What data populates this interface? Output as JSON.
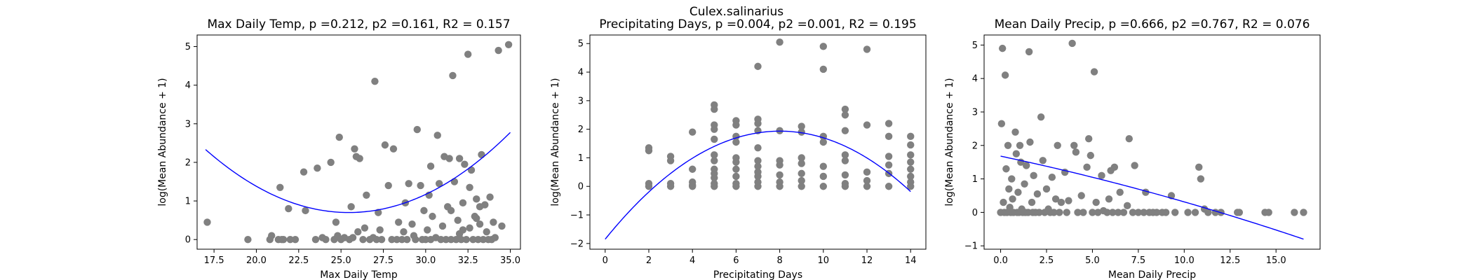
{
  "suptitle": "Culex.salinarius",
  "chart_data": [
    {
      "type": "scatter",
      "title": "Max Daily Temp, p =0.212, p2 =0.161, R2 = 0.157",
      "xlabel": "Max Daily Temp",
      "ylabel": "log(Mean Abundance + 1)",
      "xlim": [
        16.5,
        35.6
      ],
      "ylim": [
        -0.25,
        5.3
      ],
      "xticks": [
        "17.5",
        "20.0",
        "22.5",
        "25.0",
        "27.5",
        "30.0",
        "32.5",
        "35.0"
      ],
      "yticks": [
        "0",
        "1",
        "2",
        "3",
        "4",
        "5"
      ],
      "grid": false,
      "point_color": "#808080",
      "curve_color": "#0000ff",
      "fit_quadratic": [
        0.0228,
        -1.161,
        15.48
      ],
      "fit_range": [
        17.0,
        35.0
      ],
      "points": [
        [
          17.1,
          0.45
        ],
        [
          19.5,
          0.0
        ],
        [
          20.8,
          0.0
        ],
        [
          20.9,
          0.1
        ],
        [
          21.3,
          0.0
        ],
        [
          21.5,
          0.0
        ],
        [
          21.6,
          0.0
        ],
        [
          22.0,
          0.0
        ],
        [
          22.3,
          0.0
        ],
        [
          21.4,
          1.35
        ],
        [
          21.9,
          0.8
        ],
        [
          22.8,
          1.75
        ],
        [
          22.9,
          0.75
        ],
        [
          23.5,
          0.0
        ],
        [
          23.9,
          0.05
        ],
        [
          23.6,
          1.85
        ],
        [
          24.4,
          2.0
        ],
        [
          24.1,
          0.0
        ],
        [
          24.6,
          0.0
        ],
        [
          24.8,
          0.1
        ],
        [
          24.7,
          0.45
        ],
        [
          25.0,
          0.0
        ],
        [
          25.2,
          0.05
        ],
        [
          24.9,
          2.65
        ],
        [
          25.6,
          0.85
        ],
        [
          25.8,
          2.35
        ],
        [
          25.9,
          2.15
        ],
        [
          26.1,
          2.1
        ],
        [
          25.5,
          0.0
        ],
        [
          25.7,
          0.05
        ],
        [
          26.0,
          0.2
        ],
        [
          26.3,
          0.0
        ],
        [
          26.5,
          1.15
        ],
        [
          26.7,
          0.0
        ],
        [
          26.9,
          0.05
        ],
        [
          27.0,
          4.1
        ],
        [
          27.1,
          0.0
        ],
        [
          27.2,
          0.7
        ],
        [
          27.4,
          0.0
        ],
        [
          27.6,
          2.45
        ],
        [
          27.8,
          1.4
        ],
        [
          28.0,
          0.0
        ],
        [
          28.1,
          2.35
        ],
        [
          28.3,
          0.0
        ],
        [
          28.4,
          0.45
        ],
        [
          28.6,
          0.0
        ],
        [
          28.7,
          0.2
        ],
        [
          28.9,
          0.0
        ],
        [
          29.0,
          1.45
        ],
        [
          29.3,
          0.1
        ],
        [
          29.4,
          0.0
        ],
        [
          29.5,
          2.85
        ],
        [
          29.7,
          1.4
        ],
        [
          29.8,
          0.0
        ],
        [
          29.9,
          0.75
        ],
        [
          30.0,
          0.0
        ],
        [
          30.1,
          0.25
        ],
        [
          30.2,
          1.15
        ],
        [
          30.3,
          0.0
        ],
        [
          30.4,
          0.6
        ],
        [
          30.6,
          0.05
        ],
        [
          30.7,
          2.7
        ],
        [
          30.8,
          1.45
        ],
        [
          30.9,
          0.0
        ],
        [
          31.0,
          0.35
        ],
        [
          31.1,
          2.15
        ],
        [
          31.2,
          0.0
        ],
        [
          31.3,
          0.85
        ],
        [
          31.4,
          2.1
        ],
        [
          31.5,
          0.0
        ],
        [
          31.6,
          4.25
        ],
        [
          31.7,
          1.5
        ],
        [
          31.8,
          0.0
        ],
        [
          31.9,
          0.5
        ],
        [
          32.0,
          2.1
        ],
        [
          32.1,
          0.0
        ],
        [
          32.2,
          0.95
        ],
        [
          32.3,
          1.95
        ],
        [
          32.4,
          0.0
        ],
        [
          32.5,
          4.8
        ],
        [
          32.6,
          0.3
        ],
        [
          32.7,
          1.8
        ],
        [
          32.8,
          0.0
        ],
        [
          32.9,
          0.6
        ],
        [
          33.0,
          1.05
        ],
        [
          33.1,
          0.0
        ],
        [
          33.2,
          0.4
        ],
        [
          33.3,
          2.2
        ],
        [
          33.4,
          0.0
        ],
        [
          33.5,
          0.9
        ],
        [
          33.6,
          0.2
        ],
        [
          33.7,
          0.0
        ],
        [
          33.8,
          1.1
        ],
        [
          33.9,
          0.0
        ],
        [
          34.0,
          0.45
        ],
        [
          34.1,
          0.05
        ],
        [
          34.3,
          4.9
        ],
        [
          34.5,
          0.35
        ],
        [
          34.9,
          5.05
        ],
        [
          31.5,
          0.75
        ],
        [
          32.0,
          0.15
        ],
        [
          32.6,
          1.35
        ],
        [
          33.2,
          0.85
        ],
        [
          30.3,
          1.9
        ],
        [
          29.2,
          0.4
        ],
        [
          28.8,
          0.95
        ],
        [
          27.3,
          0.25
        ],
        [
          26.4,
          0.3
        ],
        [
          33.0,
          0.55
        ],
        [
          32.2,
          0.25
        ]
      ]
    },
    {
      "type": "scatter",
      "title": "Precipitating Days, p =0.004, p2 =0.001, R2 = 0.195",
      "xlabel": "Precipitating Days",
      "ylabel": "log(Mean Abundance + 1)",
      "xlim": [
        -0.7,
        14.7
      ],
      "ylim": [
        -2.2,
        5.3
      ],
      "xticks": [
        "0",
        "2",
        "4",
        "6",
        "8",
        "10",
        "12",
        "14"
      ],
      "yticks": [
        "−2",
        "−1",
        "0",
        "1",
        "2",
        "3",
        "4",
        "5"
      ],
      "grid": false,
      "point_color": "#808080",
      "curve_color": "#0000ff",
      "fit_quadratic": [
        -0.059,
        0.945,
        -1.85
      ],
      "fit_range": [
        0,
        14
      ],
      "points": [
        [
          2,
          1.35
        ],
        [
          2,
          1.25
        ],
        [
          2,
          0.1
        ],
        [
          2,
          0.0
        ],
        [
          3,
          1.05
        ],
        [
          3,
          0.9
        ],
        [
          3,
          0.1
        ],
        [
          3,
          0.0
        ],
        [
          4,
          1.9
        ],
        [
          4,
          0.6
        ],
        [
          4,
          0.15
        ],
        [
          4,
          0.0
        ],
        [
          4,
          0.05
        ],
        [
          5,
          2.85
        ],
        [
          5,
          2.7
        ],
        [
          5,
          2.15
        ],
        [
          5,
          2.0
        ],
        [
          5,
          1.65
        ],
        [
          5,
          1.1
        ],
        [
          5,
          0.9
        ],
        [
          5,
          0.6
        ],
        [
          5,
          0.45
        ],
        [
          5,
          0.3
        ],
        [
          5,
          0.1
        ],
        [
          5,
          0.0
        ],
        [
          6,
          2.3
        ],
        [
          6,
          2.15
        ],
        [
          6,
          1.75
        ],
        [
          6,
          1.55
        ],
        [
          6,
          1.0
        ],
        [
          6,
          0.85
        ],
        [
          6,
          0.6
        ],
        [
          6,
          0.35
        ],
        [
          6,
          0.1
        ],
        [
          6,
          0.0
        ],
        [
          7,
          4.2
        ],
        [
          7,
          2.35
        ],
        [
          7,
          2.2
        ],
        [
          7,
          1.95
        ],
        [
          7,
          1.35
        ],
        [
          7,
          0.9
        ],
        [
          7,
          0.7
        ],
        [
          7,
          0.5
        ],
        [
          7,
          0.35
        ],
        [
          7,
          0.15
        ],
        [
          7,
          0.0
        ],
        [
          8,
          5.05
        ],
        [
          8,
          1.95
        ],
        [
          8,
          0.9
        ],
        [
          8,
          0.75
        ],
        [
          8,
          0.4
        ],
        [
          8,
          0.15
        ],
        [
          8,
          0.0
        ],
        [
          9,
          2.1
        ],
        [
          9,
          1.9
        ],
        [
          9,
          1.0
        ],
        [
          9,
          0.8
        ],
        [
          9,
          0.45
        ],
        [
          9,
          0.2
        ],
        [
          9,
          0.0
        ],
        [
          10,
          4.9
        ],
        [
          10,
          4.1
        ],
        [
          10,
          1.75
        ],
        [
          10,
          1.55
        ],
        [
          10,
          0.7
        ],
        [
          10,
          0.35
        ],
        [
          10,
          0.0
        ],
        [
          11,
          2.7
        ],
        [
          11,
          2.5
        ],
        [
          11,
          1.95
        ],
        [
          11,
          1.1
        ],
        [
          11,
          0.9
        ],
        [
          11,
          0.4
        ],
        [
          11,
          0.1
        ],
        [
          11,
          0.0
        ],
        [
          12,
          4.8
        ],
        [
          12,
          2.15
        ],
        [
          12,
          0.5
        ],
        [
          12,
          0.2
        ],
        [
          12,
          0.0
        ],
        [
          13,
          2.2
        ],
        [
          13,
          1.75
        ],
        [
          13,
          1.05
        ],
        [
          13,
          0.75
        ],
        [
          13,
          0.45
        ],
        [
          13,
          0.0
        ],
        [
          14,
          1.75
        ],
        [
          14,
          1.45
        ],
        [
          14,
          1.1
        ],
        [
          14,
          0.85
        ],
        [
          14,
          0.6
        ],
        [
          14,
          0.35
        ],
        [
          14,
          0.15
        ],
        [
          14,
          0.0
        ]
      ]
    },
    {
      "type": "scatter",
      "title": "Mean Daily Precip, p =0.666, p2 =0.767, R2 = 0.076",
      "xlabel": "Mean Daily Precip",
      "ylabel": "log(Mean Abundance + 1)",
      "xlim": [
        -0.9,
        17.4
      ],
      "ylim": [
        -1.1,
        5.3
      ],
      "xticks": [
        "0.0",
        "2.5",
        "5.0",
        "7.5",
        "10.0",
        "12.5",
        "15.0"
      ],
      "yticks": [
        "−1",
        "0",
        "1",
        "2",
        "3",
        "4",
        "5"
      ],
      "grid": false,
      "point_color": "#808080",
      "curve_color": "#0000ff",
      "fit_quadratic": [
        -0.0021,
        -0.1156,
        1.68
      ],
      "fit_range": [
        0.0,
        16.5
      ],
      "points": [
        [
          0.0,
          0.0
        ],
        [
          0.05,
          2.65
        ],
        [
          0.1,
          4.9
        ],
        [
          0.15,
          0.3
        ],
        [
          0.2,
          0.0
        ],
        [
          0.25,
          4.1
        ],
        [
          0.3,
          1.3
        ],
        [
          0.35,
          0.0
        ],
        [
          0.4,
          2.0
        ],
        [
          0.45,
          0.7
        ],
        [
          0.5,
          0.15
        ],
        [
          0.55,
          0.0
        ],
        [
          0.6,
          1.0
        ],
        [
          0.65,
          0.4
        ],
        [
          0.7,
          0.0
        ],
        [
          0.8,
          2.4
        ],
        [
          0.85,
          1.75
        ],
        [
          0.9,
          0.0
        ],
        [
          0.95,
          0.6
        ],
        [
          1.0,
          0.0
        ],
        [
          1.05,
          2.0
        ],
        [
          1.1,
          1.5
        ],
        [
          1.15,
          0.1
        ],
        [
          1.2,
          0.0
        ],
        [
          1.3,
          0.85
        ],
        [
          1.35,
          0.0
        ],
        [
          1.4,
          1.4
        ],
        [
          1.5,
          0.0
        ],
        [
          1.55,
          4.8
        ],
        [
          1.6,
          2.1
        ],
        [
          1.7,
          0.3
        ],
        [
          1.75,
          0.0
        ],
        [
          1.8,
          1.1
        ],
        [
          1.9,
          0.0
        ],
        [
          2.0,
          0.55
        ],
        [
          2.1,
          0.0
        ],
        [
          2.2,
          2.85
        ],
        [
          2.3,
          1.55
        ],
        [
          2.4,
          0.0
        ],
        [
          2.5,
          0.7
        ],
        [
          2.6,
          0.1
        ],
        [
          2.7,
          0.0
        ],
        [
          2.8,
          1.05
        ],
        [
          2.9,
          0.0
        ],
        [
          3.0,
          0.4
        ],
        [
          3.1,
          2.0
        ],
        [
          3.2,
          0.0
        ],
        [
          3.3,
          0.3
        ],
        [
          3.5,
          1.2
        ],
        [
          3.6,
          0.0
        ],
        [
          3.7,
          0.35
        ],
        [
          3.9,
          5.05
        ],
        [
          4.0,
          2.0
        ],
        [
          4.1,
          1.8
        ],
        [
          4.2,
          0.0
        ],
        [
          4.4,
          0.5
        ],
        [
          4.5,
          0.0
        ],
        [
          4.7,
          1.35
        ],
        [
          4.8,
          2.2
        ],
        [
          4.9,
          1.7
        ],
        [
          5.0,
          0.0
        ],
        [
          5.1,
          4.2
        ],
        [
          5.2,
          0.3
        ],
        [
          5.3,
          0.0
        ],
        [
          5.5,
          1.1
        ],
        [
          5.6,
          0.05
        ],
        [
          5.8,
          0.0
        ],
        [
          5.9,
          0.4
        ],
        [
          6.0,
          1.25
        ],
        [
          6.1,
          0.0
        ],
        [
          6.2,
          1.35
        ],
        [
          6.4,
          0.0
        ],
        [
          6.5,
          0.6
        ],
        [
          6.7,
          0.0
        ],
        [
          6.9,
          0.2
        ],
        [
          7.0,
          2.2
        ],
        [
          7.2,
          0.0
        ],
        [
          7.3,
          1.4
        ],
        [
          7.5,
          0.0
        ],
        [
          7.8,
          0.0
        ],
        [
          7.9,
          0.6
        ],
        [
          8.1,
          0.0
        ],
        [
          8.3,
          0.0
        ],
        [
          8.5,
          0.0
        ],
        [
          8.8,
          0.0
        ],
        [
          9.0,
          0.0
        ],
        [
          9.3,
          0.5
        ],
        [
          9.5,
          0.0
        ],
        [
          10.2,
          0.0
        ],
        [
          10.6,
          0.0
        ],
        [
          10.8,
          1.35
        ],
        [
          10.9,
          1.0
        ],
        [
          11.1,
          0.1
        ],
        [
          11.3,
          0.0
        ],
        [
          11.7,
          0.0
        ],
        [
          12.0,
          0.0
        ],
        [
          12.9,
          0.0
        ],
        [
          13.0,
          0.0
        ],
        [
          14.4,
          0.0
        ],
        [
          14.6,
          0.0
        ],
        [
          16.0,
          0.0
        ],
        [
          16.5,
          0.0
        ]
      ]
    }
  ]
}
